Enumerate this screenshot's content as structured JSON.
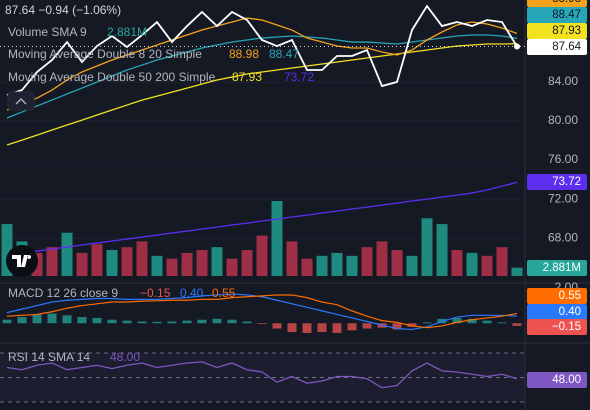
{
  "chart_data": [
    {
      "type": "line",
      "change": "−0.94 (−1.06%)",
      "legend": [
        "Volume SMA 9",
        "Moving Average Double 8 20 Simple",
        "Moving Average Double 50 200 Simple"
      ],
      "ylim": [
        63.5,
        92.41
      ],
      "yticks": [
        {
          "value": 68,
          "label": "68.00"
        },
        {
          "value": 72,
          "label": "72.00"
        },
        {
          "value": 76,
          "label": "76.00"
        },
        {
          "value": 80,
          "label": "80.00"
        },
        {
          "value": 84,
          "label": "84.00"
        }
      ],
      "series": [
        {
          "color": "#ffffff",
          "values": [
            82.67,
            83.18,
            85.03,
            86.26,
            88.1,
            86.05,
            87.69,
            88.72,
            87.59,
            88.82,
            90.15,
            88.1,
            89.74,
            91.18,
            89.74,
            91.18,
            90.36,
            88.31,
            87.69,
            88.31,
            85.23,
            85.23,
            86.67,
            86.67,
            87.28,
            83.59,
            84.0,
            89.33,
            91.79,
            89.74,
            90.15,
            89.74,
            90.36,
            90.15,
            87.64
          ]
        },
        {
          "color": "#f7a21b",
          "values": [
            81.13,
            81.64,
            82.36,
            83.18,
            84.21,
            85.03,
            85.64,
            86.26,
            86.77,
            87.28,
            87.8,
            88.31,
            88.82,
            89.33,
            89.74,
            90.15,
            90.56,
            90.36,
            89.85,
            89.33,
            88.51,
            88.1,
            87.69,
            87.49,
            87.49,
            87.08,
            86.77,
            87.28,
            88.31,
            89.13,
            89.85,
            90.15,
            89.95,
            89.54,
            88.98
          ]
        },
        {
          "color": "#26a6b8",
          "values": [
            80.31,
            80.92,
            81.54,
            82.15,
            82.77,
            83.38,
            84.0,
            84.62,
            85.23,
            85.74,
            86.26,
            86.67,
            87.08,
            87.49,
            87.8,
            88.1,
            88.31,
            88.51,
            88.62,
            88.72,
            88.62,
            88.51,
            88.31,
            88.1,
            88.1,
            88.0,
            87.9,
            88.1,
            88.31,
            88.51,
            88.72,
            88.82,
            88.82,
            88.72,
            88.47
          ]
        },
        {
          "color": "#f2e21f",
          "values": [
            77.54,
            78.05,
            78.56,
            79.08,
            79.59,
            80.1,
            80.62,
            81.13,
            81.64,
            82.15,
            82.56,
            82.97,
            83.38,
            83.8,
            84.21,
            84.51,
            84.82,
            85.03,
            85.23,
            85.44,
            85.64,
            85.85,
            86.05,
            86.26,
            86.46,
            86.67,
            86.87,
            87.08,
            87.28,
            87.49,
            87.69,
            87.8,
            87.9,
            87.9,
            87.93
          ]
        },
        {
          "color": "#5b2ef0",
          "values": [
            66.26,
            66.47,
            66.67,
            66.88,
            67.08,
            67.29,
            67.49,
            67.7,
            67.9,
            68.11,
            68.31,
            68.52,
            68.72,
            68.93,
            69.13,
            69.34,
            69.54,
            69.75,
            69.95,
            70.16,
            70.36,
            70.57,
            70.77,
            70.98,
            71.18,
            71.39,
            71.59,
            71.8,
            72.0,
            72.21,
            72.41,
            72.62,
            72.93,
            73.33,
            73.72
          ]
        }
      ],
      "volume": {
        "color": "#26a69a",
        "colors": [
          "#1f8a7f",
          "#1f8a7f",
          "#9e2f47",
          "#9e2f47",
          "#1f8a7f",
          "#9e2f47",
          "#9e2f47",
          "#1f8a7f",
          "#9e2f47",
          "#9e2f47",
          "#1f8a7f",
          "#9e2f47",
          "#9e2f47",
          "#9e2f47",
          "#1f8a7f",
          "#9e2f47",
          "#9e2f47",
          "#9e2f47",
          "#1f8a7f",
          "#9e2f47",
          "#9e2f47",
          "#1f8a7f",
          "#1f8a7f",
          "#1f8a7f",
          "#9e2f47",
          "#9e2f47",
          "#9e2f47",
          "#1f8a7f",
          "#1f8a7f",
          "#1f8a7f",
          "#9e2f47",
          "#1f8a7f",
          "#9e2f47",
          "#9e2f47",
          "#1f8a7f"
        ],
        "values": [
          18,
          12,
          8,
          10,
          15,
          8,
          11,
          9,
          10,
          12,
          7,
          6,
          8,
          9,
          10,
          6,
          9,
          14,
          26,
          12,
          6,
          7,
          8,
          7,
          10,
          12,
          9,
          7,
          20,
          18,
          9,
          8,
          7,
          10,
          2.881
        ],
        "value_labels": [
          null,
          null,
          null,
          null,
          null,
          null,
          null,
          null,
          null,
          null,
          null,
          null,
          null,
          null,
          null,
          null,
          null,
          null,
          null,
          null,
          null,
          null,
          null,
          null,
          null,
          null,
          null,
          null,
          null,
          null,
          null,
          null,
          null,
          null,
          "2.881M"
        ]
      }
    },
    {
      "type": "macd",
      "title": "MACD 12 26 close 9",
      "ylim": [
        -1.06,
        2.22
      ],
      "yticks": [
        {
          "value": 2,
          "label": "2.00"
        }
      ],
      "up_color": "#26a69a",
      "down_color": "#ef5350",
      "values": [
        0.2,
        0.35,
        0.5,
        0.55,
        0.45,
        0.35,
        0.3,
        0.2,
        0.15,
        0.1,
        0.08,
        0.1,
        0.15,
        0.2,
        0.25,
        0.2,
        0.1,
        -0.05,
        -0.3,
        -0.5,
        -0.55,
        -0.5,
        -0.55,
        -0.4,
        -0.3,
        -0.25,
        -0.35,
        -0.2,
        0.05,
        0.25,
        0.3,
        0.25,
        0.15,
        0.05,
        -0.15
      ],
      "value_labels": [
        null,
        null,
        null,
        null,
        null,
        null,
        null,
        null,
        null,
        null,
        null,
        null,
        null,
        null,
        null,
        null,
        null,
        null,
        null,
        null,
        null,
        null,
        null,
        null,
        null,
        null,
        null,
        null,
        null,
        null,
        null,
        null,
        null,
        null,
        "−0.15"
      ],
      "series": [
        {
          "color": "#2979ff",
          "values": [
            0.6,
            0.8,
            1.0,
            1.2,
            1.3,
            1.35,
            1.4,
            1.4,
            1.35,
            1.35,
            1.35,
            1.4,
            1.45,
            1.55,
            1.6,
            1.65,
            1.6,
            1.5,
            1.3,
            1.1,
            0.9,
            0.7,
            0.5,
            0.3,
            0.1,
            -0.1,
            -0.3,
            -0.35,
            -0.2,
            0.1,
            0.35,
            0.45,
            0.45,
            0.45,
            0.4
          ],
          "value_labels": [
            null,
            null,
            null,
            null,
            null,
            null,
            null,
            null,
            null,
            null,
            null,
            null,
            null,
            null,
            null,
            null,
            null,
            null,
            null,
            null,
            null,
            null,
            null,
            null,
            null,
            null,
            null,
            null,
            null,
            null,
            null,
            null,
            null,
            null,
            "0.40"
          ]
        },
        {
          "color": "#ff6d00",
          "values": [
            0.4,
            0.45,
            0.5,
            0.65,
            0.85,
            1.0,
            1.1,
            1.2,
            1.2,
            1.25,
            1.27,
            1.3,
            1.3,
            1.35,
            1.35,
            1.45,
            1.5,
            1.55,
            1.6,
            1.6,
            1.45,
            1.2,
            1.05,
            0.7,
            0.4,
            0.15,
            0.05,
            -0.15,
            -0.25,
            -0.15,
            0.05,
            0.2,
            0.3,
            0.4,
            0.55
          ]
        }
      ]
    },
    {
      "type": "rsi",
      "title": "RSI 14 SMA 14",
      "ylim": [
        22,
        78
      ],
      "series": [
        {
          "color": "#7e57c2",
          "values": [
            58,
            56,
            60,
            62,
            56,
            58,
            60,
            57,
            60,
            62,
            58,
            60,
            62,
            63,
            58,
            62,
            56,
            54,
            45,
            50,
            44,
            46,
            50,
            50,
            48,
            40,
            42,
            55,
            62,
            55,
            54,
            52,
            50,
            52,
            48
          ],
          "value_labels": [
            null,
            null,
            null,
            null,
            null,
            null,
            null,
            null,
            null,
            null,
            null,
            null,
            null,
            null,
            null,
            null,
            null,
            null,
            null,
            null,
            null,
            null,
            null,
            null,
            null,
            null,
            null,
            null,
            null,
            null,
            null,
            null,
            null,
            null,
            "48.00"
          ]
        }
      ]
    }
  ]
}
